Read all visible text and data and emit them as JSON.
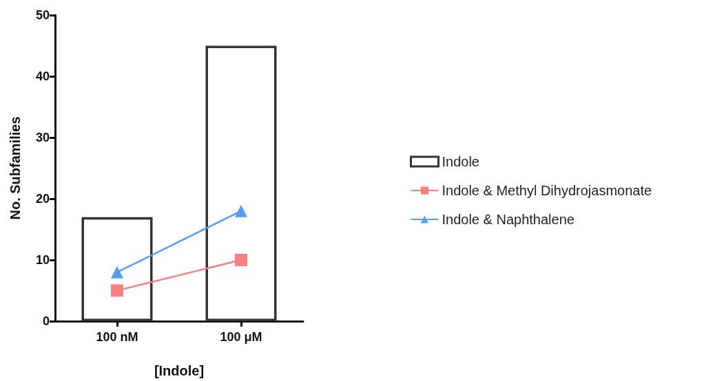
{
  "chart_data": {
    "type": "bar",
    "xlabel": "[Indole]",
    "ylabel": "No. Subfamilies",
    "categories": [
      "100 nM",
      "100 μM"
    ],
    "series": [
      {
        "name": "Indole",
        "color": "#333333",
        "values": [
          17,
          45
        ]
      },
      {
        "name": "Indole & Methyl Dihydrojasmonate",
        "type": "line",
        "color": "#f88080",
        "marker": "square",
        "values": [
          5,
          10
        ]
      },
      {
        "name": "Indole & Naphthalene",
        "type": "line",
        "color": "#559ff0",
        "marker": "triangle",
        "values": [
          8,
          18
        ]
      }
    ],
    "ylim": [
      0,
      50
    ],
    "yticks": [
      0,
      10,
      20,
      30,
      40,
      50
    ],
    "grid": false,
    "legend": "right"
  }
}
